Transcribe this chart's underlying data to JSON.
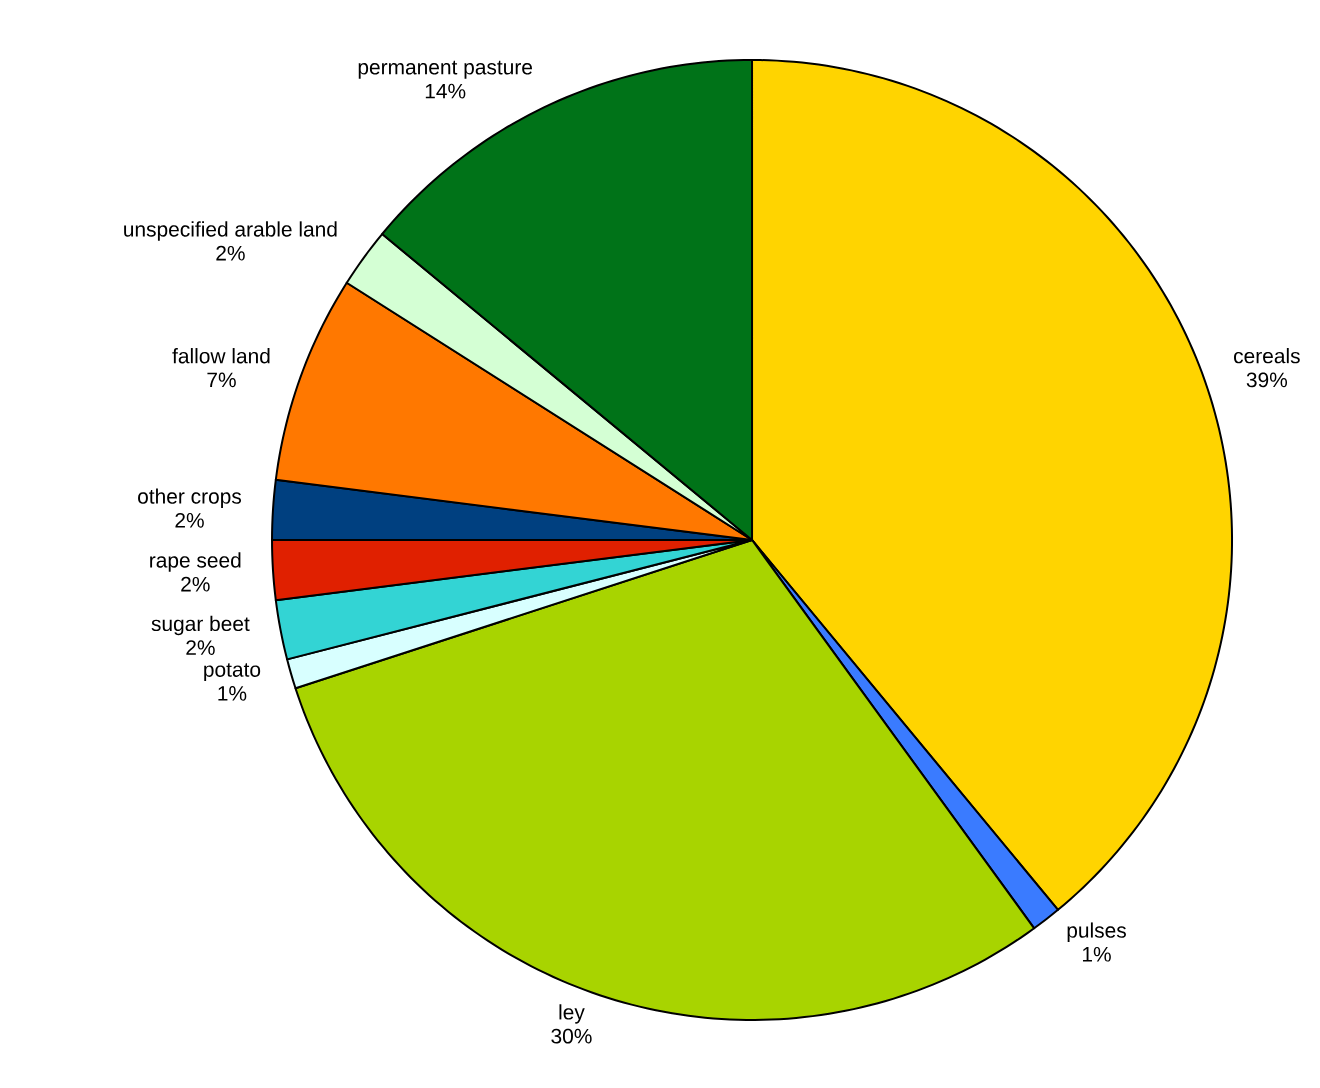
{
  "chart_data": {
    "type": "pie",
    "value_labels": [
      "39%",
      "1%",
      "30%",
      "1%",
      "2%",
      "2%",
      "2%",
      "7%",
      "2%",
      "14%"
    ],
    "categories": [
      "cereals",
      "pulses",
      "ley",
      "potato",
      "sugar beet",
      "rape seed",
      "other crops",
      "fallow land",
      "unspecified arable land",
      "permanent pasture"
    ],
    "values": [
      39,
      1,
      30,
      1,
      2,
      2,
      2,
      7,
      2,
      14
    ],
    "colors": [
      "#ffd400",
      "#3a7bff",
      "#a8d400",
      "#d8ffff",
      "#33d4d4",
      "#e02000",
      "#004080",
      "#ff7800",
      "#d4ffd4",
      "#007318"
    ]
  }
}
